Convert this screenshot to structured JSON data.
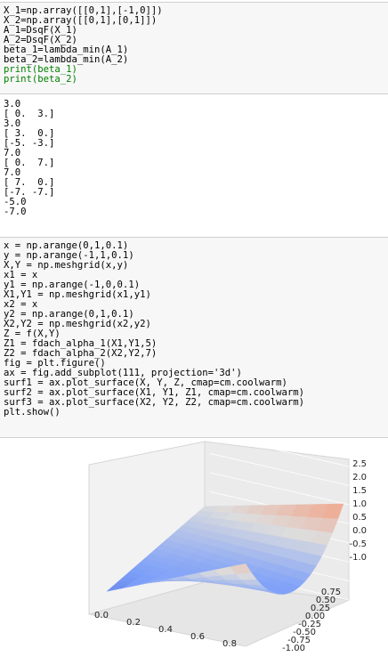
{
  "cell1": {
    "lines": [
      "X_1=np.array([[0,1],[-1,0]])",
      "X_2=np.array([[0,1],[0,1]])",
      "A_1=DsqF(X_1)",
      "A_2=DsqF(X_2)",
      "beta_1=lambda_min(A_1)",
      "beta_2=lambda_min(A_2)",
      "print(beta_1)",
      "print(beta_2)"
    ]
  },
  "output1": {
    "lines": [
      "3.0",
      "[ 0.  3.]",
      "3.0",
      "[ 3.  0.]",
      "[-5. -3.]",
      "7.0",
      "[ 0.  7.]",
      "7.0",
      "[ 7.  0.]",
      "[-7. -7.]",
      "-5.0",
      "-7.0"
    ]
  },
  "cell2": {
    "lines": [
      "x = np.arange(0,1,0.1)",
      "y = np.arange(-1,1,0.1)",
      "X,Y = np.meshgrid(x,y)",
      "x1 = x",
      "y1 = np.arange(-1,0,0.1)",
      "X1,Y1 = np.meshgrid(x1,y1)",
      "x2 = x",
      "y2 = np.arange(0,1,0.1)",
      "X2,Y2 = np.meshgrid(x2,y2)",
      "Z = f(X,Y)",
      "Z1 = fdach_alpha_1(X1,Y1,5)",
      "Z2 = fdach_alpha_2(X2,Y2,7)",
      "fig = plt.figure()",
      "ax = fig.add_subplot(111, projection='3d')",
      "surf1 = ax.plot_surface(X, Y, Z, cmap=cm.coolwarm)",
      "surf2 = ax.plot_surface(X1, Y1, Z1, cmap=cm.coolwarm)",
      "surf3 = ax.plot_surface(X2, Y2, Z2, cmap=cm.coolwarm)",
      "plt.show()"
    ]
  },
  "chart_data": {
    "type": "surface3d",
    "colormap": "coolwarm",
    "x_ticks": [
      "0.0",
      "0.2",
      "0.4",
      "0.6",
      "0.8"
    ],
    "y_ticks": [
      "-1.00",
      "-0.75",
      "-0.50",
      "-0.25",
      "0.00",
      "0.25",
      "0.50",
      "0.75"
    ],
    "z_ticks": [
      "2.5",
      "2.0",
      "1.5",
      "1.0",
      "0.5",
      "0.0",
      "-0.5",
      "-1.0"
    ],
    "xlim": [
      0,
      0.9
    ],
    "ylim": [
      -1,
      0.9
    ],
    "zlim": [
      -1,
      2.5
    ],
    "grid": true
  }
}
